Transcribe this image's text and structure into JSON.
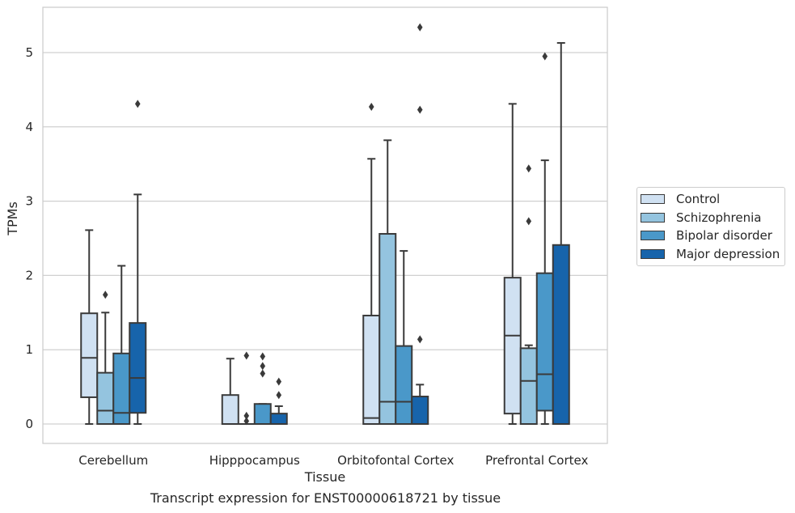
{
  "chart_data": {
    "type": "box",
    "title": "",
    "caption": "Transcript expression for ENST00000618721 by tissue",
    "xlabel": "Tissue",
    "ylabel": "TPMs",
    "ylim": [
      -0.25,
      5.6
    ],
    "yticks": [
      0,
      1,
      2,
      3,
      4,
      5
    ],
    "grid": true,
    "legend_position": "right",
    "categories": [
      "Cerebellum",
      "Hipppocampus",
      "Orbitofontal Cortex",
      "Prefrontal Cortex"
    ],
    "series": [
      {
        "name": "Control",
        "color": "#d0e1f2",
        "boxes": [
          {
            "whislo": 0.0,
            "q1": 0.36,
            "med": 0.89,
            "q3": 1.49,
            "whishi": 2.61,
            "fliers": []
          },
          {
            "whislo": 0.0,
            "q1": 0.0,
            "med": 0.0,
            "q3": 0.39,
            "whishi": 0.88,
            "fliers": []
          },
          {
            "whislo": 0.0,
            "q1": 0.0,
            "med": 0.08,
            "q3": 1.46,
            "whishi": 3.57,
            "fliers": [
              4.27
            ]
          },
          {
            "whislo": 0.0,
            "q1": 0.14,
            "med": 1.19,
            "q3": 1.97,
            "whishi": 4.31,
            "fliers": []
          }
        ]
      },
      {
        "name": "Schizophrenia",
        "color": "#94c4df",
        "boxes": [
          {
            "whislo": 0.0,
            "q1": 0.0,
            "med": 0.18,
            "q3": 0.69,
            "whishi": 1.5,
            "fliers": [
              1.74
            ]
          },
          {
            "whislo": 0.0,
            "q1": 0.0,
            "med": 0.0,
            "q3": 0.0,
            "whishi": 0.0,
            "fliers": [
              0.04,
              0.11,
              0.92
            ]
          },
          {
            "whislo": 0.0,
            "q1": 0.0,
            "med": 0.3,
            "q3": 2.56,
            "whishi": 3.82,
            "fliers": []
          },
          {
            "whislo": 0.0,
            "q1": 0.0,
            "med": 0.58,
            "q3": 1.02,
            "whishi": 1.06,
            "fliers": [
              2.73,
              3.44
            ]
          }
        ]
      },
      {
        "name": "Bipolar disorder",
        "color": "#4a98c9",
        "boxes": [
          {
            "whislo": 0.0,
            "q1": 0.0,
            "med": 0.15,
            "q3": 0.95,
            "whishi": 2.13,
            "fliers": []
          },
          {
            "whislo": 0.0,
            "q1": 0.0,
            "med": 0.0,
            "q3": 0.27,
            "whishi": 0.27,
            "fliers": [
              0.68,
              0.78,
              0.91
            ]
          },
          {
            "whislo": 0.0,
            "q1": 0.0,
            "med": 0.3,
            "q3": 1.05,
            "whishi": 2.33,
            "fliers": []
          },
          {
            "whislo": 0.0,
            "q1": 0.18,
            "med": 0.67,
            "q3": 2.03,
            "whishi": 3.55,
            "fliers": [
              4.95
            ]
          }
        ]
      },
      {
        "name": "Major depression",
        "color": "#1764ab",
        "boxes": [
          {
            "whislo": 0.0,
            "q1": 0.15,
            "med": 0.62,
            "q3": 1.36,
            "whishi": 3.09,
            "fliers": [
              4.31
            ]
          },
          {
            "whislo": 0.0,
            "q1": 0.0,
            "med": 0.0,
            "q3": 0.14,
            "whishi": 0.24,
            "fliers": [
              0.39,
              0.57
            ]
          },
          {
            "whislo": 0.0,
            "q1": 0.0,
            "med": 0.0,
            "q3": 0.37,
            "whishi": 0.53,
            "fliers": [
              1.14,
              4.23,
              5.34
            ]
          },
          {
            "whislo": 0.0,
            "q1": 0.0,
            "med": 0.0,
            "q3": 2.41,
            "whishi": 5.13,
            "fliers": []
          }
        ]
      }
    ]
  }
}
